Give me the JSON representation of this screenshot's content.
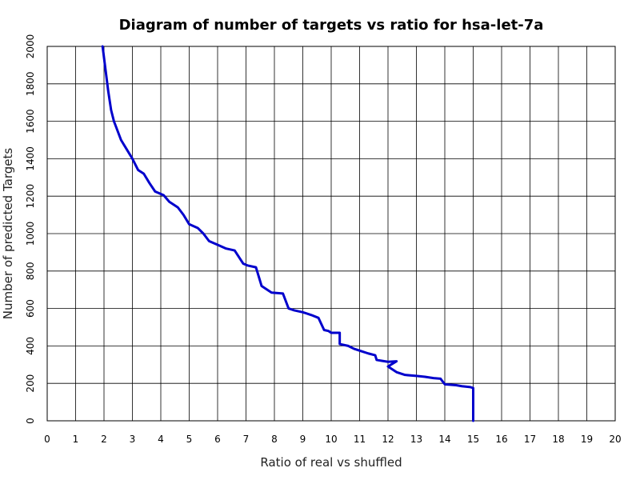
{
  "chart_data": {
    "type": "line",
    "title": "Diagram of number of targets vs ratio for hsa-let-7a",
    "xlabel": "Ratio of real vs shuffled",
    "ylabel": "Number of predicted Targets",
    "xlim": [
      0,
      20
    ],
    "ylim": [
      0,
      2000
    ],
    "xticks": [
      "0",
      "1",
      "2",
      "3",
      "4",
      "5",
      "6",
      "7",
      "8",
      "9",
      "10",
      "11",
      "12",
      "13",
      "14",
      "15",
      "16",
      "17",
      "18",
      "19",
      "20"
    ],
    "yticks": [
      "0",
      "200",
      "400",
      "600",
      "800",
      "1000",
      "1200",
      "1400",
      "1600",
      "1800",
      "2000"
    ],
    "grid": true,
    "legend": "none",
    "line_color": "#0000cc",
    "series": [
      {
        "x": [
          1.95,
          2.05,
          2.15,
          2.25,
          2.35,
          2.4,
          2.6,
          2.8,
          3.0,
          3.2,
          3.4,
          3.6,
          3.8,
          4.1,
          4.3,
          4.6,
          4.8,
          5.0,
          5.3,
          5.5,
          5.7,
          6.0,
          6.3,
          6.6,
          6.9,
          7.05,
          7.35,
          7.55,
          7.65,
          7.9,
          8.3,
          8.5,
          8.7,
          9.0,
          9.3,
          9.55,
          9.75,
          9.9,
          10.0,
          10.3,
          10.3,
          10.6,
          10.8,
          11.1,
          11.3,
          11.55,
          11.6,
          11.8,
          12.0,
          12.3,
          12.0,
          12.3,
          12.6,
          13.0,
          13.3,
          13.6,
          13.85,
          14.0,
          14.4,
          14.6,
          14.9,
          15.0,
          15.0
        ],
        "y": [
          2000,
          1880,
          1760,
          1660,
          1600,
          1580,
          1500,
          1450,
          1400,
          1340,
          1320,
          1270,
          1225,
          1205,
          1170,
          1140,
          1100,
          1050,
          1030,
          1000,
          960,
          940,
          920,
          910,
          840,
          830,
          820,
          720,
          710,
          685,
          680,
          600,
          590,
          580,
          565,
          550,
          485,
          480,
          470,
          470,
          410,
          400,
          385,
          370,
          360,
          350,
          325,
          320,
          315,
          318,
          290,
          260,
          245,
          240,
          235,
          228,
          225,
          195,
          190,
          185,
          180,
          175,
          0
        ]
      }
    ]
  }
}
